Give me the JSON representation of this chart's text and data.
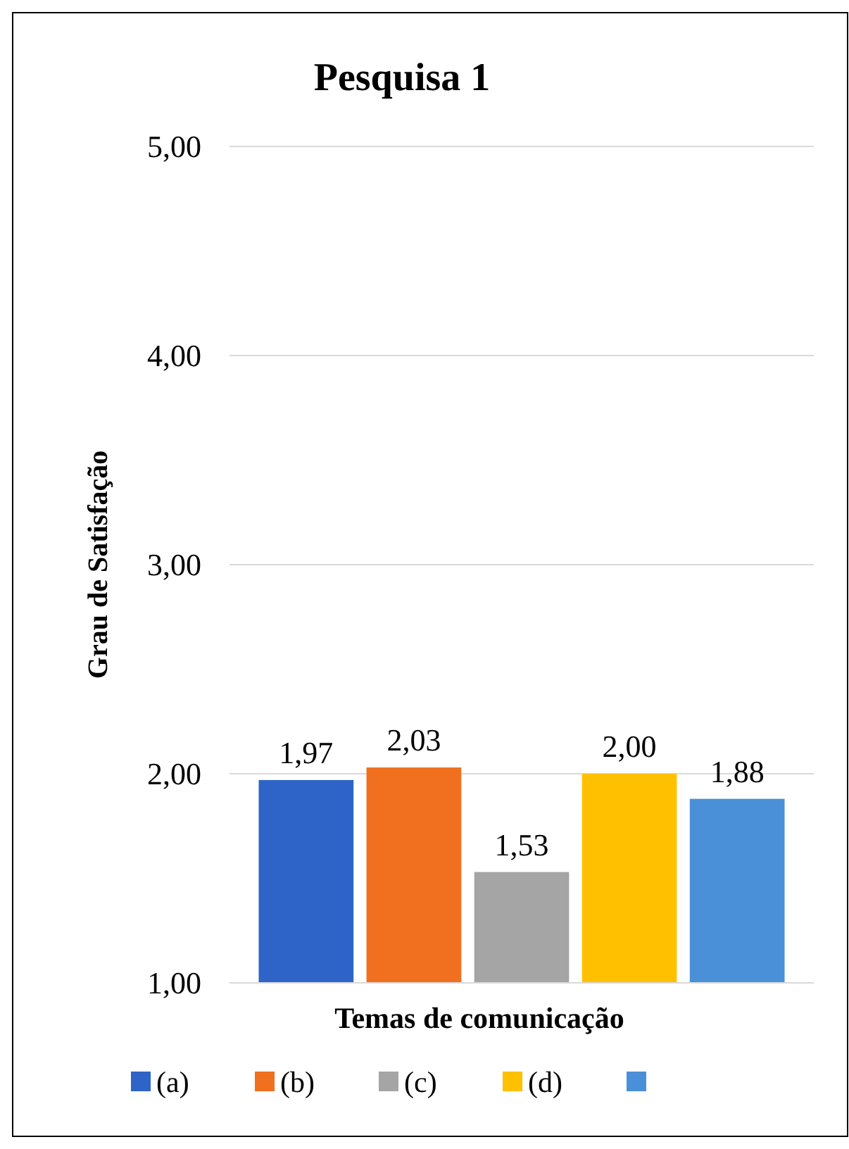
{
  "chart_data": {
    "type": "bar",
    "title": "Pesquisa 1",
    "xlabel": "Temas de comunicação",
    "ylabel": "Grau de Satisfação",
    "categories": [
      null
    ],
    "series": [
      {
        "name": "(a)",
        "color": "#2e64c8",
        "values": [
          1.97
        ],
        "value_labels": [
          "1,97"
        ]
      },
      {
        "name": "(b)",
        "color": "#f07020",
        "values": [
          2.03
        ],
        "value_labels": [
          "2,03"
        ]
      },
      {
        "name": "(c)",
        "color": "#a5a5a5",
        "values": [
          1.53
        ],
        "value_labels": [
          "1,53"
        ]
      },
      {
        "name": "(d)",
        "color": "#ffc000",
        "values": [
          2.0
        ],
        "value_labels": [
          "2,00"
        ]
      },
      {
        "color": "#4a90d8",
        "values": [
          1.88
        ],
        "value_labels": [
          "1,88"
        ]
      }
    ],
    "ylim": [
      1,
      5
    ],
    "yticks": [
      {
        "value": 1,
        "label": "1,00"
      },
      {
        "value": 2,
        "label": "2,00"
      },
      {
        "value": 3,
        "label": "3,00"
      },
      {
        "value": 4,
        "label": "4,00"
      },
      {
        "value": 5,
        "label": "5,00"
      }
    ],
    "grid": "y",
    "legend": "bottom"
  }
}
